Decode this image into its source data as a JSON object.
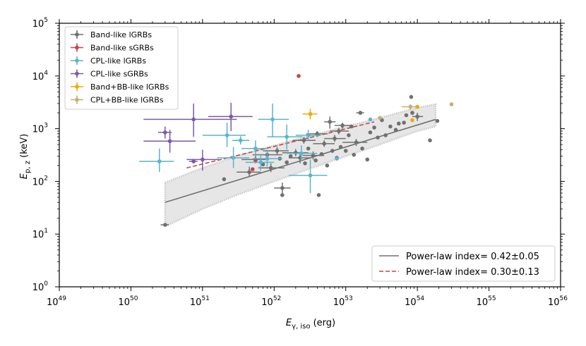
{
  "chart_data": {
    "type": "scatter",
    "xlabel_main": "E",
    "xlabel_sub": "γ, iso",
    "xlabel_unit": " (erg)",
    "ylabel_main": "E",
    "ylabel_sub": "p, z",
    "ylabel_unit": " (keV)",
    "xscale": "log",
    "yscale": "log",
    "xlim": [
      1e+49,
      1e+56
    ],
    "ylim": [
      1,
      100000.0
    ],
    "x_ticks": [
      {
        "base": "10",
        "exp": "49",
        "value": 1e+49
      },
      {
        "base": "10",
        "exp": "50",
        "value": 1e+50
      },
      {
        "base": "10",
        "exp": "51",
        "value": 1e+51
      },
      {
        "base": "10",
        "exp": "52",
        "value": 1e+52
      },
      {
        "base": "10",
        "exp": "53",
        "value": 1e+53
      },
      {
        "base": "10",
        "exp": "54",
        "value": 1e+54
      },
      {
        "base": "10",
        "exp": "55",
        "value": 1e+55
      },
      {
        "base": "10",
        "exp": "56",
        "value": 1e+56
      }
    ],
    "y_ticks": [
      {
        "base": "10",
        "exp": "0",
        "value": 1
      },
      {
        "base": "10",
        "exp": "1",
        "value": 10
      },
      {
        "base": "10",
        "exp": "2",
        "value": 100
      },
      {
        "base": "10",
        "exp": "3",
        "value": 1000
      },
      {
        "base": "10",
        "exp": "4",
        "value": 10000
      },
      {
        "base": "10",
        "exp": "5",
        "value": 100000
      }
    ],
    "legend": [
      {
        "label": "Band-like lGRBs",
        "color": "#707070"
      },
      {
        "label": "Band-like sGRBs",
        "color": "#c8454c"
      },
      {
        "label": "CPL-like lGRBs",
        "color": "#5ab4cc"
      },
      {
        "label": "CPL-like sGRBs",
        "color": "#7a5aa8"
      },
      {
        "label": "Band+BB-like lGRBs",
        "color": "#f2a900"
      },
      {
        "label": "CPL+BB-like lGRBs",
        "color": "#c8ae6e"
      }
    ],
    "fit_legend": [
      {
        "label": "Power-law index= 0.42±0.05",
        "color": "#707070",
        "style": "solid"
      },
      {
        "label": "Power-law index= 0.30±0.13",
        "color": "#c8454c",
        "style": "dashed"
      }
    ],
    "fit_lines": [
      {
        "name": "lGRB fit",
        "x": [
          3e+50,
          1.8e+54
        ],
        "y": [
          40,
          1500
        ],
        "color": "#707070",
        "style": "solid"
      },
      {
        "name": "sGRB fit",
        "x": [
          6e+50,
          2.5e+53
        ],
        "y": [
          180,
          1350
        ],
        "color": "#c8454c",
        "style": "dashed"
      }
    ],
    "confidence_band": {
      "x": [
        3e+50,
        1e+51,
        3e+51,
        1e+52,
        3e+52,
        1e+53,
        3e+53,
        1e+54,
        1.8e+54
      ],
      "upper": [
        95,
        180,
        300,
        480,
        720,
        1100,
        1600,
        2500,
        2900
      ],
      "lower": [
        14,
        30,
        55,
        100,
        170,
        300,
        500,
        900,
        1100
      ],
      "color": "#dcdcdc"
    },
    "series": [
      {
        "name": "Band-like lGRBs",
        "color": "#707070",
        "points": [
          {
            "x": 3e+50,
            "y": 15,
            "xerr": [
              2.6e+50,
              3.4e+50
            ],
            "yerr": [
              14,
              16
            ]
          },
          {
            "x": 2e+51,
            "y": 110
          },
          {
            "x": 4.5e+51,
            "y": 150,
            "xerr": [
              3e+51,
              6.5e+51
            ],
            "yerr": [
              120,
              190
            ]
          },
          {
            "x": 5.5e+51,
            "y": 260,
            "xerr": [
              3.5e+51,
              8.5e+51
            ],
            "yerr": [
              220,
              310
            ]
          },
          {
            "x": 7e+51,
            "y": 210
          },
          {
            "x": 8e+51,
            "y": 320,
            "xerr": [
              5e+51,
              1.3e+52
            ],
            "yerr": [
              260,
              390
            ]
          },
          {
            "x": 9e+51,
            "y": 180,
            "xerr": [
              6e+51,
              1.4e+52
            ],
            "yerr": [
              150,
              220
            ]
          },
          {
            "x": 1.1e+52,
            "y": 380,
            "xerr": [
              7e+51,
              1.6e+52
            ],
            "yerr": [
              320,
              450
            ]
          },
          {
            "x": 1.2e+52,
            "y": 270
          },
          {
            "x": 1.3e+52,
            "y": 75,
            "xerr": [
              1e+52,
              1.7e+52
            ],
            "yerr": [
              60,
              95
            ]
          },
          {
            "x": 1.3e+52,
            "y": 55
          },
          {
            "x": 1.5e+52,
            "y": 230
          },
          {
            "x": 1.7e+52,
            "y": 300
          },
          {
            "x": 2e+52,
            "y": 350,
            "xerr": [
              1.3e+52,
              3e+52
            ],
            "yerr": [
              300,
              410
            ]
          },
          {
            "x": 2.3e+52,
            "y": 280,
            "xerr": [
              1.6e+52,
              3.3e+52
            ],
            "yerr": [
              220,
              360
            ]
          },
          {
            "x": 2.7e+52,
            "y": 220
          },
          {
            "x": 2.6e+52,
            "y": 600,
            "xerr": [
              1.8e+52,
              3.8e+52
            ],
            "yerr": [
              520,
              700
            ]
          },
          {
            "x": 3e+52,
            "y": 420
          },
          {
            "x": 3.5e+52,
            "y": 310,
            "xerr": [
              2.5e+52,
              5e+52
            ],
            "yerr": [
              260,
              370
            ]
          },
          {
            "x": 3.8e+52,
            "y": 250
          },
          {
            "x": 4e+52,
            "y": 800,
            "xerr": [
              2.8e+52,
              5.6e+52
            ],
            "yerr": [
              700,
              900
            ]
          },
          {
            "x": 4.2e+52,
            "y": 55
          },
          {
            "x": 4.6e+52,
            "y": 330
          },
          {
            "x": 5e+52,
            "y": 520,
            "xerr": [
              3.5e+52,
              7e+52
            ],
            "yerr": [
              450,
              600
            ]
          },
          {
            "x": 5.5e+52,
            "y": 200
          },
          {
            "x": 6e+52,
            "y": 1350,
            "xerr": [
              5e+52,
              7.2e+52
            ],
            "yerr": [
              1000,
              1700
            ]
          },
          {
            "x": 6.5e+52,
            "y": 380
          },
          {
            "x": 7e+52,
            "y": 650,
            "xerr": [
              5e+52,
              1e+53
            ],
            "yerr": [
              560,
              760
            ]
          },
          {
            "x": 7.5e+52,
            "y": 280
          },
          {
            "x": 8e+52,
            "y": 900,
            "xerr": [
              6e+52,
              1.1e+53
            ],
            "yerr": [
              780,
              1040
            ]
          },
          {
            "x": 8.5e+52,
            "y": 450
          },
          {
            "x": 9e+52,
            "y": 1150,
            "xerr": [
              7e+52,
              1.2e+53
            ],
            "yerr": [
              1000,
              1300
            ]
          },
          {
            "x": 1e+53,
            "y": 380
          },
          {
            "x": 1.1e+53,
            "y": 750
          },
          {
            "x": 1.2e+53,
            "y": 1100
          },
          {
            "x": 1.3e+53,
            "y": 320
          },
          {
            "x": 1.4e+53,
            "y": 550,
            "xerr": [
              9e+52,
              2e+53
            ],
            "yerr": [
              470,
              640
            ]
          },
          {
            "x": 1.6e+53,
            "y": 2000,
            "xerr": [
              1.4e+53,
              1.8e+53
            ],
            "yerr": [
              1850,
              2150
            ]
          },
          {
            "x": 1.7e+53,
            "y": 420
          },
          {
            "x": 2e+53,
            "y": 260
          },
          {
            "x": 2.2e+53,
            "y": 850
          },
          {
            "x": 2.5e+53,
            "y": 1050
          },
          {
            "x": 2.8e+53,
            "y": 680
          },
          {
            "x": 3.2e+53,
            "y": 1450
          },
          {
            "x": 3.6e+53,
            "y": 750
          },
          {
            "x": 4.2e+53,
            "y": 1100
          },
          {
            "x": 5e+53,
            "y": 950
          },
          {
            "x": 5.5e+53,
            "y": 1250
          },
          {
            "x": 6.5e+53,
            "y": 1300
          },
          {
            "x": 7e+53,
            "y": 1800
          },
          {
            "x": 8.2e+53,
            "y": 4000
          },
          {
            "x": 8.5e+53,
            "y": 2000
          },
          {
            "x": 1e+54,
            "y": 1700,
            "xerr": [
              8.5e+53,
              1.2e+54
            ],
            "yerr": [
              1400,
              2000
            ]
          },
          {
            "x": 1.5e+54,
            "y": 600
          },
          {
            "x": 1.9e+54,
            "y": 1400
          }
        ]
      },
      {
        "name": "Band-like sGRBs",
        "color": "#c8454c",
        "points": [
          {
            "x": 2.2e+52,
            "y": 10000
          },
          {
            "x": 5e+51,
            "y": 170
          },
          {
            "x": 5.5e+51,
            "y": 250
          }
        ]
      },
      {
        "name": "CPL-like lGRBs",
        "color": "#5ab4cc",
        "points": [
          {
            "x": 2.5e+50,
            "y": 240,
            "xerr": [
              1.3e+50,
              4e+50
            ],
            "yerr": [
              150,
              420
            ]
          },
          {
            "x": 2.2e+51,
            "y": 750,
            "xerr": [
              1e+51,
              4e+51
            ],
            "yerr": [
              450,
              1300
            ]
          },
          {
            "x": 2.7e+51,
            "y": 280,
            "xerr": [
              1.6e+51,
              4.5e+51
            ],
            "yerr": [
              180,
              450
            ]
          },
          {
            "x": 3.4e+51,
            "y": 600,
            "xerr": [
              2.6e+51,
              4.5e+51
            ],
            "yerr": [
              500,
              720
            ]
          },
          {
            "x": 5.5e+51,
            "y": 420,
            "xerr": [
              3.5e+51,
              8e+51
            ],
            "yerr": [
              300,
              600
            ]
          },
          {
            "x": 6.5e+51,
            "y": 230,
            "xerr": [
              4e+51,
              1e+52
            ],
            "yerr": [
              160,
              330
            ]
          },
          {
            "x": 8e+51,
            "y": 270,
            "xerr": [
              5e+51,
              1.3e+52
            ],
            "yerr": [
              190,
              380
            ]
          },
          {
            "x": 9.5e+51,
            "y": 1500,
            "xerr": [
              6e+51,
              1.6e+52
            ],
            "yerr": [
              700,
              3000
            ]
          },
          {
            "x": 1.5e+52,
            "y": 700,
            "xerr": [
              8e+51,
              2.5e+52
            ],
            "yerr": [
              400,
              1200
            ]
          },
          {
            "x": 2.4e+52,
            "y": 340,
            "xerr": [
              1.5e+52,
              4e+52
            ],
            "yerr": [
              240,
              480
            ]
          },
          {
            "x": 3.2e+52,
            "y": 130,
            "xerr": [
              1.6e+52,
              5.5e+52
            ],
            "yerr": [
              60,
              260
            ]
          },
          {
            "x": 3e+52,
            "y": 750,
            "xerr": [
              2e+52,
              4.5e+52
            ],
            "yerr": [
              600,
              950
            ]
          },
          {
            "x": 7.5e+52,
            "y": 270
          },
          {
            "x": 2.2e+53,
            "y": 1500
          }
        ]
      },
      {
        "name": "CPL-like sGRBs",
        "color": "#7a5aa8",
        "points": [
          {
            "x": 3e+50,
            "y": 850,
            "xerr": [
              2.4e+50,
              3.7e+50
            ],
            "yerr": [
              650,
              1100
            ]
          },
          {
            "x": 3.5e+50,
            "y": 580,
            "xerr": [
              1.5e+50,
              8e+50
            ],
            "yerr": [
              350,
              950
            ]
          },
          {
            "x": 7.5e+50,
            "y": 1500,
            "xerr": [
              1.5e+50,
              3e+51
            ],
            "yerr": [
              700,
              3000
            ]
          },
          {
            "x": 2.5e+51,
            "y": 1700,
            "xerr": [
              1.2e+51,
              5e+51
            ],
            "yerr": [
              900,
              3100
            ]
          },
          {
            "x": 1e+51,
            "y": 260,
            "xerr": [
              6e+50,
              1.7e+51
            ],
            "yerr": [
              160,
              400
            ]
          },
          {
            "x": 7.5e+50,
            "y": 240,
            "xerr": [
              6.5e+50,
              8.5e+50
            ],
            "yerr": [
              220,
              260
            ]
          }
        ]
      },
      {
        "name": "Band+BB-like lGRBs",
        "color": "#f2a900",
        "points": [
          {
            "x": 3.2e+52,
            "y": 1900,
            "xerr": [
              2.5e+52,
              4e+52
            ],
            "yerr": [
              1500,
              2400
            ]
          },
          {
            "x": 8.5e+53,
            "y": 1450
          },
          {
            "x": 1e+54,
            "y": 2600
          }
        ]
      },
      {
        "name": "CPL+BB-like lGRBs",
        "color": "#c8ae6e",
        "points": [
          {
            "x": 3e+53,
            "y": 1600
          },
          {
            "x": 8e+53,
            "y": 2600,
            "xerr": [
              6e+53,
              1e+54
            ],
            "yerr": [
              2300,
              2900
            ]
          },
          {
            "x": 3e+54,
            "y": 2900
          }
        ]
      }
    ]
  }
}
